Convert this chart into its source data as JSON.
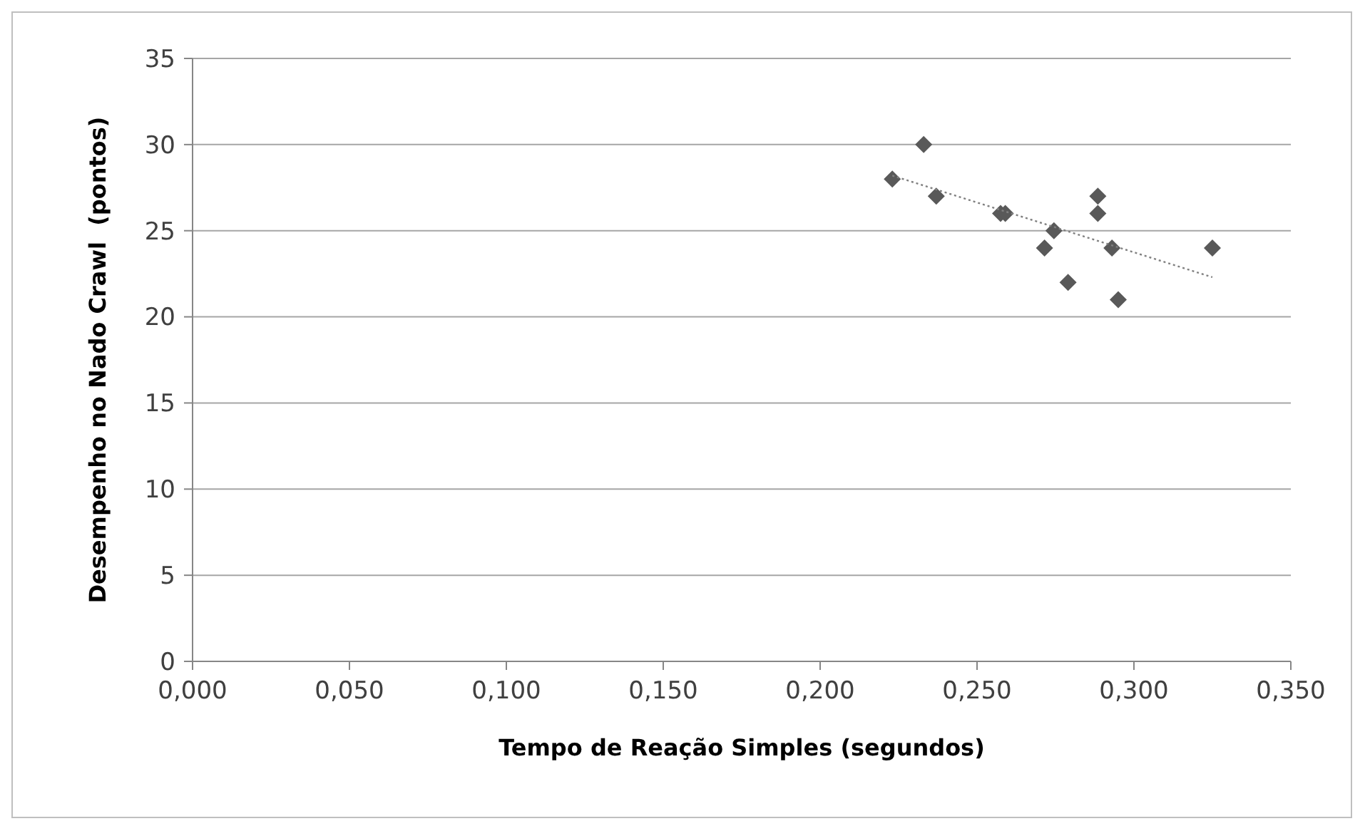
{
  "chart_data": {
    "type": "scatter",
    "xlabel": "Tempo de Reação Simples (segundos)",
    "ylabel": "Desempenho no Nado Crawl  (pontos)",
    "xlim": [
      0,
      0.35
    ],
    "xticks": [
      {
        "value": 0,
        "label": "0,000"
      },
      {
        "value": 0.05,
        "label": "0,050"
      },
      {
        "value": 0.1,
        "label": "0,100"
      },
      {
        "value": 0.15,
        "label": "0,150"
      },
      {
        "value": 0.2,
        "label": "0,200"
      },
      {
        "value": 0.25,
        "label": "0,250"
      },
      {
        "value": 0.3,
        "label": "0,300"
      },
      {
        "value": 0.35,
        "label": "0,350"
      }
    ],
    "ylim": [
      0,
      35
    ],
    "yticks": [
      0,
      5,
      10,
      15,
      20,
      25,
      30,
      35
    ],
    "grid": "y",
    "series": [
      {
        "marker": "diamond",
        "color": "#595959",
        "x": [
          0.223,
          0.233,
          0.237,
          0.2575,
          0.259,
          0.2715,
          0.2745,
          0.279,
          0.2885,
          0.2885,
          0.293,
          0.295,
          0.325
        ],
        "values": [
          28,
          30,
          27,
          26,
          26,
          24,
          25,
          22,
          27,
          26,
          24,
          21,
          24
        ]
      },
      {
        "type": "line",
        "marker": "none",
        "color": "#808080",
        "line_style": "dotted",
        "x": [
          0.223,
          0.325
        ],
        "values": [
          28.2,
          22.3
        ]
      }
    ]
  }
}
